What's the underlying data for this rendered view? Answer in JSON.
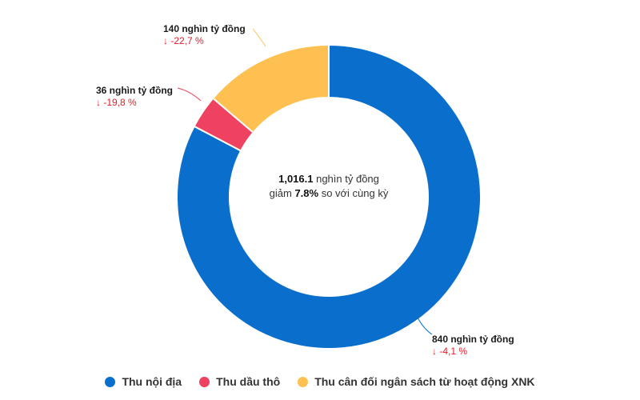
{
  "chart_data": {
    "type": "pie",
    "donut": true,
    "center_text": {
      "total_value": "1,016.1",
      "total_suffix": " nghìn tỷ đồng",
      "line2_prefix": "giảm ",
      "line2_value": "7.8%",
      "line2_suffix": " so với cùng kỳ"
    },
    "slices": [
      {
        "name": "Thu nội địa",
        "value": 840,
        "label": "840 nghìn tỷ đồng",
        "change": "↓ -4,1 %",
        "color": "#0a6fcc"
      },
      {
        "name": "Thu dầu thô",
        "value": 36,
        "label": "36 nghìn tỷ đồng",
        "change": "↓ -19,8 %",
        "color": "#ef4160"
      },
      {
        "name": "Thu cân đối ngân sách từ hoạt động XNK",
        "value": 140,
        "label": "140 nghìn tỷ đồng",
        "change": "↓ -22,7 %",
        "color": "#fec151"
      }
    ],
    "legend_position": "bottom"
  }
}
